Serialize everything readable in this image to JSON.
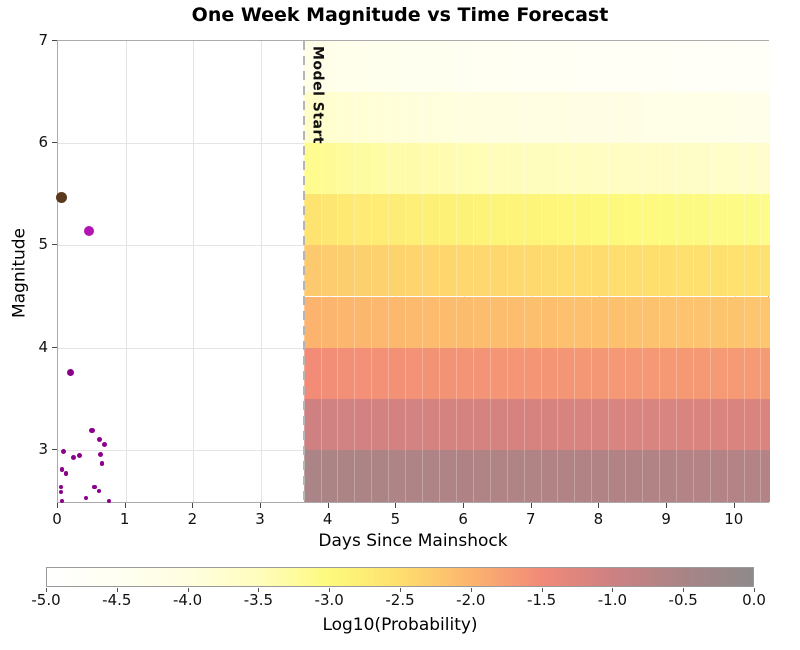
{
  "chart_data": {
    "type": "heatmap",
    "title": "One Week Magnitude vs Time Forecast",
    "xlabel": "Days Since Mainshock",
    "ylabel": "Magnitude",
    "xlim": [
      0,
      10.52
    ],
    "ylim": [
      2.47,
      7.0
    ],
    "x_ticks": [
      0,
      1,
      2,
      3,
      4,
      5,
      6,
      7,
      8,
      9,
      10
    ],
    "y_ticks": [
      3,
      4,
      5,
      6,
      7
    ],
    "grid": true,
    "model_start_day": 3.63,
    "model_start_label": "Model Start",
    "forecast_duration_days": 7,
    "heatmap": {
      "value_name": "log10_probability",
      "time_bin_days": 0.25,
      "time_decay_exponent": 0.5,
      "rows": [
        {
          "mag_lo": 6.5,
          "mag_hi": 7.0,
          "log10p_start": -4.1,
          "log10p_end": -4.75
        },
        {
          "mag_lo": 6.0,
          "mag_hi": 6.5,
          "log10p_start": -3.6,
          "log10p_end": -4.25
        },
        {
          "mag_lo": 5.5,
          "mag_hi": 6.0,
          "log10p_start": -3.05,
          "log10p_end": -3.7
        },
        {
          "mag_lo": 5.0,
          "mag_hi": 5.5,
          "log10p_start": -2.5,
          "log10p_end": -3.1
        },
        {
          "mag_lo": 4.5,
          "mag_hi": 5.0,
          "log10p_start": -2.2,
          "log10p_end": -2.55
        },
        {
          "mag_lo": 4.0,
          "mag_hi": 4.5,
          "log10p_start": -1.95,
          "log10p_end": -2.2
        },
        {
          "mag_lo": 3.5,
          "mag_hi": 4.0,
          "log10p_start": -1.5,
          "log10p_end": -1.7
        },
        {
          "mag_lo": 3.0,
          "mag_hi": 3.5,
          "log10p_start": -1.0,
          "log10p_end": -1.18
        },
        {
          "mag_lo": 2.5,
          "mag_hi": 3.0,
          "log10p_start": -0.5,
          "log10p_end": -0.65
        }
      ]
    },
    "scatter": {
      "mainshock": {
        "day": 0.05,
        "mag": 5.47,
        "color": "#5a3a1e"
      },
      "aftershock_color": "#8b008b",
      "aftershocks": [
        {
          "day": 0.46,
          "mag": 5.14,
          "color": "#b213b2"
        },
        {
          "day": 0.19,
          "mag": 3.76
        },
        {
          "day": 0.5,
          "mag": 3.19
        },
        {
          "day": 0.61,
          "mag": 3.1
        },
        {
          "day": 0.69,
          "mag": 3.05
        },
        {
          "day": 0.08,
          "mag": 2.98
        },
        {
          "day": 0.63,
          "mag": 2.95
        },
        {
          "day": 0.32,
          "mag": 2.94
        },
        {
          "day": 0.23,
          "mag": 2.93
        },
        {
          "day": 0.65,
          "mag": 2.87
        },
        {
          "day": 0.06,
          "mag": 2.81
        },
        {
          "day": 0.12,
          "mag": 2.77
        },
        {
          "day": 0.05,
          "mag": 2.64
        },
        {
          "day": 0.54,
          "mag": 2.64
        },
        {
          "day": 0.6,
          "mag": 2.6
        },
        {
          "day": 0.05,
          "mag": 2.59
        },
        {
          "day": 0.41,
          "mag": 2.53
        },
        {
          "day": 0.06,
          "mag": 2.5
        },
        {
          "day": 0.75,
          "mag": 2.5
        }
      ]
    },
    "colorbar": {
      "label": "Log10(Probability)",
      "min": -5.0,
      "max": 0.0,
      "tick_labels": [
        "-5.0",
        "-4.5",
        "-4.0",
        "-3.5",
        "-3.0",
        "-2.5",
        "-2.0",
        "-1.5",
        "-1.0",
        "-0.5",
        "0.0"
      ]
    },
    "colormap_stops": [
      {
        "value": -5.0,
        "color": "#ffffff"
      },
      {
        "value": -4.5,
        "color": "#fffff2"
      },
      {
        "value": -4.0,
        "color": "#fffee0"
      },
      {
        "value": -3.5,
        "color": "#fffdbd"
      },
      {
        "value": -3.0,
        "color": "#fdfa7d"
      },
      {
        "value": -2.5,
        "color": "#fedf6e"
      },
      {
        "value": -2.0,
        "color": "#fcb46e"
      },
      {
        "value": -1.5,
        "color": "#f18a78"
      },
      {
        "value": -1.0,
        "color": "#cd8183"
      },
      {
        "value": -0.5,
        "color": "#a98486"
      },
      {
        "value": 0.0,
        "color": "#8e8a8a"
      }
    ]
  }
}
